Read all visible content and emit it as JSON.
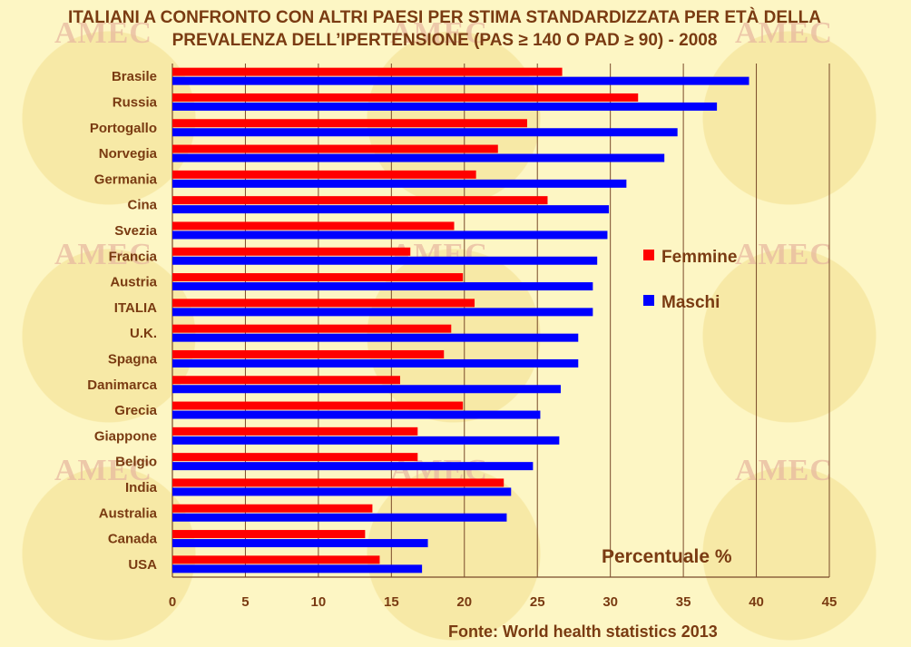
{
  "watermark": "AMEC",
  "chart_data": {
    "type": "bar",
    "orientation": "horizontal",
    "title_lines": [
      "ITALIANI A CONFRONTO CON ALTRI PAESI PER  STIMA STANDARDIZZATA PER ETÀ DELLA",
      "PREVALENZA DELL’IPERTENSIONE (PAS ≥ 140 O PAD ≥ 90) - 2008"
    ],
    "categories": [
      "Brasile",
      "Russia",
      "Portogallo",
      "Norvegia",
      "Germania",
      "Cina",
      "Svezia",
      "Francia",
      "Austria",
      "ITALIA",
      "U.K.",
      "Spagna",
      "Danimarca",
      "Grecia",
      "Giappone",
      "Belgio",
      "India",
      "Australia",
      "Canada",
      "USA"
    ],
    "series": [
      {
        "name": "Femmine",
        "color": "#ff0000",
        "values": [
          26.7,
          31.9,
          24.3,
          22.3,
          20.8,
          25.7,
          19.3,
          16.3,
          19.9,
          20.7,
          19.1,
          18.6,
          15.6,
          19.9,
          16.8,
          16.8,
          22.7,
          13.7,
          13.2,
          14.2
        ]
      },
      {
        "name": "Maschi",
        "color": "#0000ff",
        "values": [
          39.5,
          37.3,
          34.6,
          33.7,
          31.1,
          29.9,
          29.8,
          29.1,
          28.8,
          28.8,
          27.8,
          27.8,
          26.6,
          25.2,
          26.5,
          24.7,
          23.2,
          22.9,
          17.5,
          17.1
        ]
      }
    ],
    "xlim": [
      0,
      45
    ],
    "xticks": [
      0,
      5,
      10,
      15,
      20,
      25,
      30,
      35,
      40,
      45
    ],
    "gridlines": "vertical",
    "legend_position": "right",
    "unit_label": "Percentuale %",
    "source": "Fonte: World health statistics 2013"
  }
}
